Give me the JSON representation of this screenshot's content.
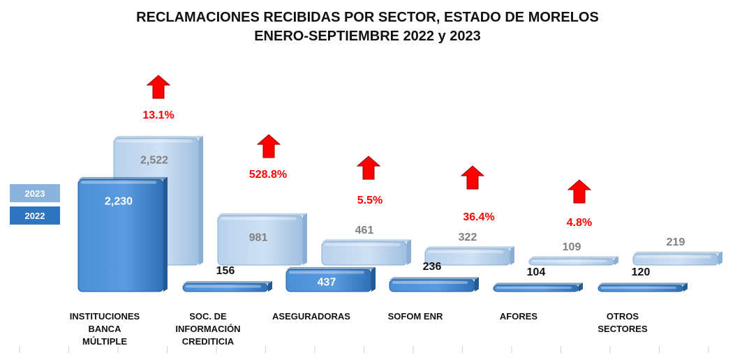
{
  "chart_data": {
    "type": "bar",
    "title": "RECLAMACIONES RECIBIDAS POR SECTOR, ESTADO DE MORELOS",
    "subtitle": "ENERO-SEPTIEMBRE 2022 y 2023",
    "categories": [
      [
        "INSTITUCIONES",
        "BANCA",
        "MÚLTIPLE"
      ],
      [
        "SOC. DE",
        "INFORMACIÓN",
        "CREDITICIA"
      ],
      [
        "ASEGURADORAS"
      ],
      [
        "SOFOM ENR"
      ],
      [
        "AFORES"
      ],
      [
        "OTROS",
        "SECTORES"
      ]
    ],
    "series": [
      {
        "name": "2022",
        "values": [
          2230,
          156,
          437,
          236,
          104,
          120
        ],
        "labels": [
          "2,230",
          "156",
          "437",
          "236",
          "104",
          "120"
        ],
        "color": "#3b7fc6"
      },
      {
        "name": "2023",
        "values": [
          2522,
          981,
          461,
          322,
          109,
          219
        ],
        "labels": [
          "2,522",
          "981",
          "461",
          "322",
          "109",
          "219"
        ],
        "color": "#c5dbf0"
      }
    ],
    "changes": [
      "13.1%",
      "528.8%",
      "5.5%",
      "36.4%",
      "4.8%",
      null
    ],
    "change_direction": "up",
    "change_color": "#ff0000",
    "legend": [
      "2023",
      "2022"
    ],
    "legend_position": "left"
  }
}
